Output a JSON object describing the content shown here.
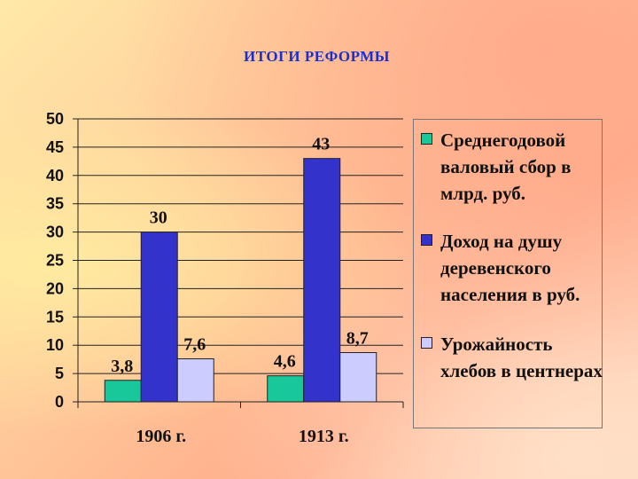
{
  "chart_data": {
    "type": "bar",
    "title": "ИТОГИ РЕФОРМЫ",
    "categories": [
      "1906 г.",
      "1913 г."
    ],
    "series": [
      {
        "name": "Среднегодовой валовый сбор в млрд. руб.",
        "values": [
          3.8,
          4.6
        ],
        "labels": [
          "3,8",
          "4,6"
        ],
        "color": "#19c89a"
      },
      {
        "name": "Доход на душу деревенского населения в руб.",
        "values": [
          30,
          43
        ],
        "labels": [
          "30",
          "43"
        ],
        "color": "#3333cc"
      },
      {
        "name": "Урожайность хлебов в центнерах",
        "values": [
          7.6,
          8.7
        ],
        "labels": [
          "7,6",
          "8,7"
        ],
        "color": "#ccccff"
      }
    ],
    "ylim": [
      0,
      50
    ],
    "yticks": [
      0,
      5,
      10,
      15,
      20,
      25,
      30,
      35,
      40,
      45,
      50
    ],
    "grid": true,
    "legend": "right"
  }
}
